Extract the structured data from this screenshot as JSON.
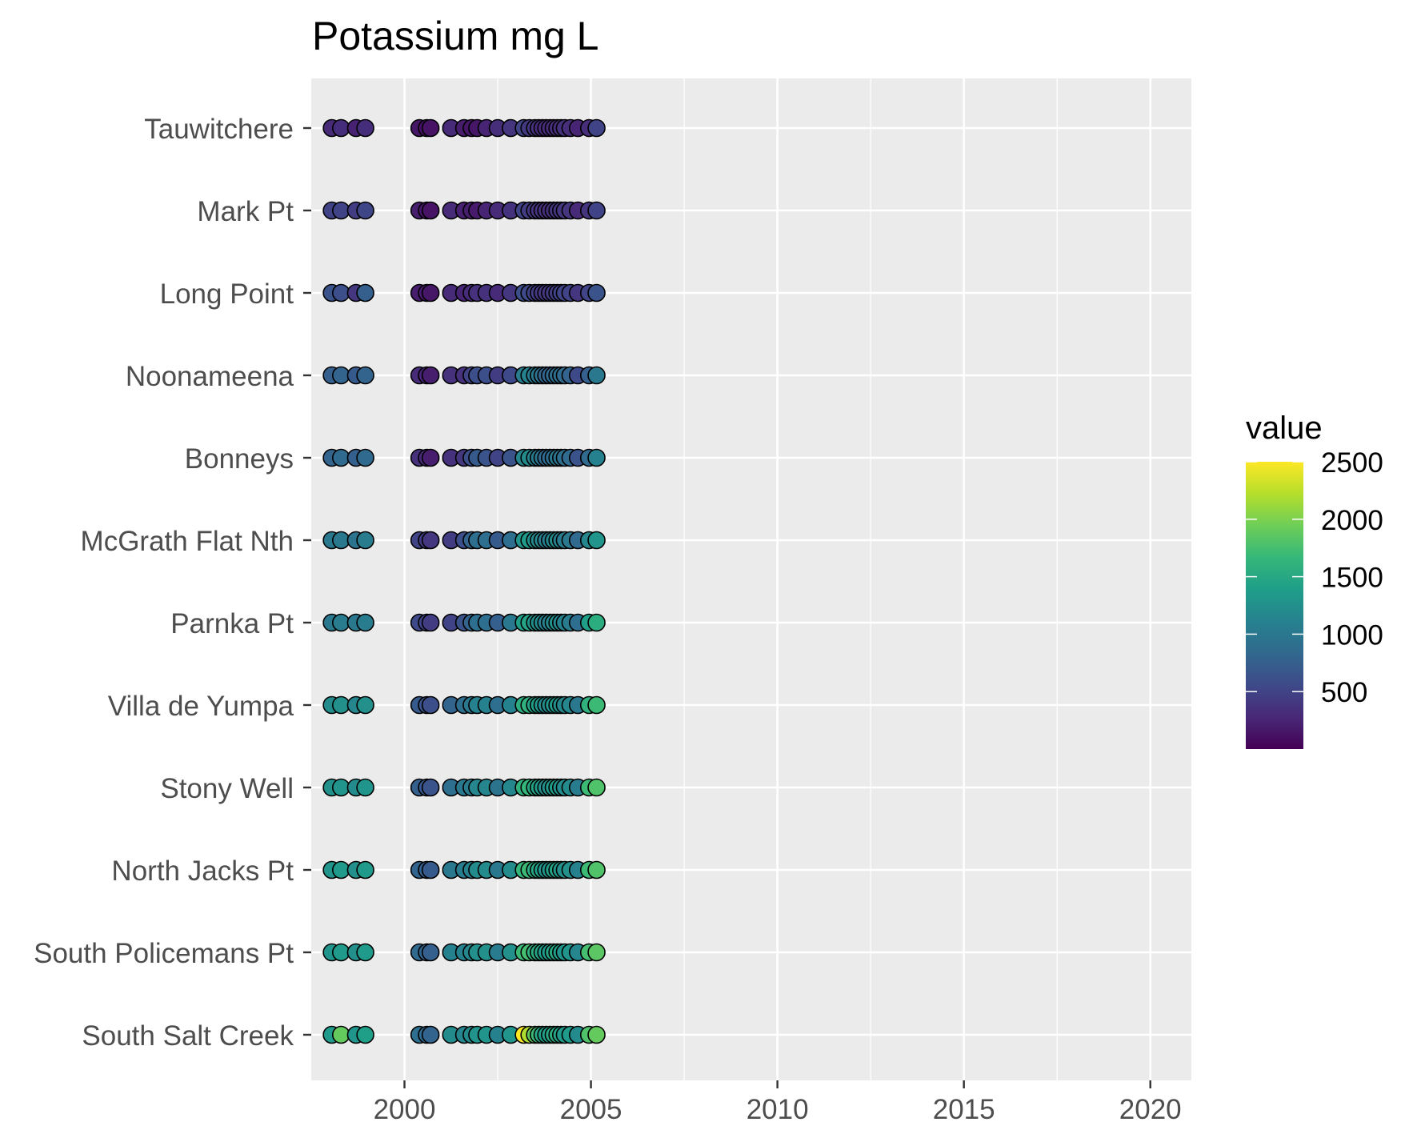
{
  "chart_data": {
    "type": "scatter",
    "title": "Potassium mg L",
    "xlabel": "",
    "ylabel": "",
    "xlim": [
      1997.5,
      2021.1
    ],
    "x_ticks": [
      2000,
      2005,
      2010,
      2015,
      2020
    ],
    "x_tick_labels": [
      "2000",
      "2005",
      "2010",
      "2015",
      "2020"
    ],
    "grid": true,
    "legend": {
      "title": "value",
      "placement": "right",
      "type": "colorbar",
      "range": [
        0,
        2500
      ],
      "ticks": [
        500,
        1000,
        1500,
        2000,
        2500
      ],
      "tick_labels": [
        "500",
        "1000",
        "1500",
        "2000",
        "2500"
      ],
      "colormap": "viridis",
      "colors": [
        "#440154",
        "#482878",
        "#3e4a89",
        "#31688e",
        "#26828e",
        "#1f9e89",
        "#35b779",
        "#6ece58",
        "#b5de2b",
        "#fde725"
      ]
    },
    "dates": [
      1998.05,
      1998.3,
      1998.7,
      1998.95,
      2000.4,
      2000.6,
      2000.7,
      2001.25,
      2001.6,
      2001.8,
      2001.95,
      2002.2,
      2002.5,
      2002.85,
      2003.2,
      2003.35,
      2003.5,
      2003.6,
      2003.7,
      2003.8,
      2003.9,
      2004.0,
      2004.1,
      2004.2,
      2004.3,
      2004.45,
      2004.65,
      2004.95,
      2005.15
    ],
    "sites": [
      "Tauwitchere",
      "Mark Pt",
      "Long Point",
      "Noonameena",
      "Bonneys",
      "McGrath Flat Nth",
      "Parnka Pt",
      "Villa de Yumpa",
      "Stony Well",
      "North Jacks Pt",
      "South Policemans Pt",
      "South Salt Creek"
    ],
    "series": [
      {
        "name": "Tauwitchere",
        "values": [
          300,
          320,
          230,
          320,
          150,
          120,
          130,
          300,
          200,
          160,
          150,
          250,
          330,
          380,
          500,
          420,
          380,
          350,
          320,
          300,
          300,
          300,
          320,
          330,
          360,
          330,
          250,
          330,
          500
        ]
      },
      {
        "name": "Mark Pt",
        "values": [
          500,
          500,
          450,
          520,
          200,
          150,
          130,
          300,
          220,
          200,
          180,
          250,
          300,
          360,
          500,
          450,
          400,
          380,
          360,
          340,
          330,
          340,
          380,
          380,
          400,
          380,
          300,
          380,
          500
        ]
      },
      {
        "name": "Long Point",
        "values": [
          650,
          600,
          400,
          750,
          200,
          180,
          150,
          300,
          250,
          300,
          350,
          350,
          300,
          400,
          600,
          550,
          500,
          450,
          400,
          400,
          400,
          450,
          450,
          500,
          500,
          500,
          400,
          500,
          650
        ]
      },
      {
        "name": "Noonameena",
        "values": [
          750,
          800,
          700,
          800,
          300,
          250,
          200,
          350,
          350,
          500,
          600,
          600,
          450,
          550,
          1050,
          1100,
          1050,
          1000,
          900,
          800,
          800,
          850,
          900,
          900,
          850,
          800,
          550,
          750,
          1000
        ]
      },
      {
        "name": "Bonneys",
        "values": [
          800,
          850,
          750,
          850,
          350,
          300,
          200,
          350,
          400,
          600,
          700,
          650,
          500,
          650,
          1150,
          1200,
          1100,
          1050,
          950,
          850,
          850,
          900,
          1000,
          950,
          900,
          850,
          650,
          850,
          1100
        ]
      },
      {
        "name": "McGrath Flat Nth",
        "values": [
          1000,
          1000,
          950,
          1050,
          500,
          450,
          400,
          450,
          600,
          800,
          900,
          900,
          700,
          900,
          1300,
          1350,
          1250,
          1200,
          1150,
          1050,
          1050,
          1150,
          1200,
          1100,
          1050,
          1000,
          850,
          1150,
          1300
        ]
      },
      {
        "name": "Parnka Pt",
        "values": [
          1000,
          1050,
          1000,
          1050,
          550,
          500,
          450,
          500,
          650,
          800,
          900,
          900,
          750,
          1000,
          1400,
          1450,
          1300,
          1250,
          1200,
          1100,
          1100,
          1200,
          1250,
          1150,
          1100,
          1050,
          900,
          1400,
          1550
        ]
      },
      {
        "name": "Villa de Yumpa",
        "values": [
          1200,
          1250,
          1150,
          1250,
          700,
          650,
          600,
          800,
          900,
          1000,
          1100,
          1100,
          900,
          1100,
          1550,
          1600,
          1450,
          1400,
          1300,
          1200,
          1200,
          1300,
          1350,
          1250,
          1150,
          1150,
          1000,
          1600,
          1700
        ]
      },
      {
        "name": "Stony Well",
        "values": [
          1250,
          1300,
          1200,
          1300,
          750,
          700,
          650,
          900,
          1000,
          1050,
          1150,
          1150,
          950,
          1150,
          1600,
          1650,
          1500,
          1450,
          1350,
          1250,
          1250,
          1350,
          1400,
          1300,
          1200,
          1200,
          1050,
          1700,
          1800
        ]
      },
      {
        "name": "North Jacks Pt",
        "values": [
          1300,
          1350,
          1250,
          1350,
          800,
          750,
          700,
          1000,
          1050,
          1100,
          1200,
          1200,
          1000,
          1200,
          1650,
          1700,
          1550,
          1500,
          1400,
          1300,
          1300,
          1400,
          1450,
          1350,
          1250,
          1250,
          1100,
          1700,
          1800
        ]
      },
      {
        "name": "South Policemans Pt",
        "values": [
          1300,
          1350,
          1250,
          1350,
          850,
          800,
          750,
          1100,
          1100,
          1150,
          1250,
          1250,
          1050,
          1250,
          1700,
          1750,
          1600,
          1550,
          1450,
          1350,
          1350,
          1450,
          1500,
          1400,
          1300,
          1300,
          1150,
          1750,
          1850
        ]
      },
      {
        "name": "South Salt Creek",
        "values": [
          1350,
          1900,
          1300,
          1400,
          900,
          850,
          800,
          1200,
          1150,
          1200,
          1300,
          1300,
          1100,
          1300,
          2500,
          2200,
          1900,
          1700,
          1500,
          1400,
          1400,
          1500,
          1550,
          1450,
          1350,
          1350,
          1200,
          1800,
          1900
        ]
      }
    ]
  }
}
